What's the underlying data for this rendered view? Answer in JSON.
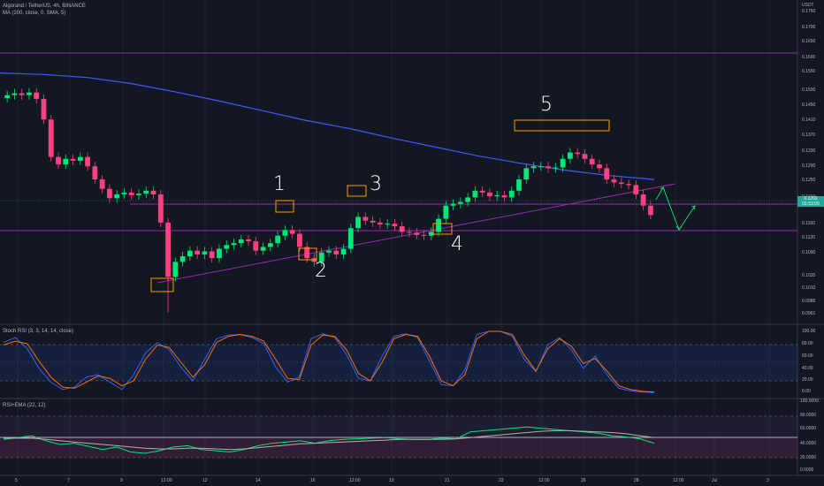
{
  "header": {
    "symbol": "Algorand / TetherUS, 4h, BINANCE",
    "indicator": "MA (200, close, 0, SMA, 5)"
  },
  "quote_currency": "USDT",
  "price_axis": {
    "ticks": [
      "0.1750",
      "0.1700",
      "0.1650",
      "0.1600",
      "0.1550",
      "0.1500",
      "0.1450",
      "0.1410",
      "0.1370",
      "0.1330",
      "0.1290",
      "0.1250",
      "0.1210",
      "0.1150",
      "0.1120",
      "0.1090",
      "0.1035",
      "0.1010",
      "0.0985",
      "0.0961"
    ],
    "last_price": "0.1202",
    "countdown": "01:53:09",
    "last_price_color": "#26a69a",
    "level_label": "0.1202"
  },
  "time_axis": {
    "ticks": [
      "5",
      "7",
      "9",
      "12:00",
      "12",
      "14",
      "16",
      "12:00",
      "19",
      "21",
      "23",
      "12:00",
      "26",
      "28",
      "12:00",
      "Jul",
      "3"
    ]
  },
  "stoch_rsi": {
    "title": "Stoch RSI (3, 3, 14, 14, close)",
    "ticks": [
      "100.00",
      "80.00",
      "60.00",
      "40.00",
      "20.00",
      "0.00"
    ],
    "k_color": "#2962ff",
    "d_color": "#ff6d00"
  },
  "rsi": {
    "title": "RSI+EMA (22, 12)",
    "ticks": [
      "100.0000",
      "80.0000",
      "60.0000",
      "40.0000",
      "20.0000",
      "0.0000"
    ],
    "rsi_color": "#00e676",
    "ema_color": "#b0b0b0"
  },
  "annotations": {
    "wave_labels": [
      "1",
      "2",
      "3",
      "4",
      "5"
    ]
  },
  "colors": {
    "background": "#131722",
    "up": "#00e676",
    "down": "#ff4081",
    "ma": "#3d5afe",
    "level_line": "#9c27b0",
    "box": "#ff9800",
    "arrow": "#00e676"
  },
  "chart_data": {
    "type": "candlestick",
    "title": "Algorand / TetherUS, 4h, BINANCE",
    "ylabel": "USDT",
    "ylim": [
      0.094,
      0.177
    ],
    "close_series": [
      0.1535,
      0.154,
      0.1535,
      0.1542,
      0.1525,
      0.147,
      0.137,
      0.135,
      0.1365,
      0.136,
      0.137,
      0.1345,
      0.131,
      0.1285,
      0.126,
      0.127,
      0.1275,
      0.1268,
      0.1272,
      0.128,
      0.127,
      0.1195,
      0.105,
      0.109,
      0.1105,
      0.112,
      0.111,
      0.1118,
      0.11,
      0.1125,
      0.1135,
      0.114,
      0.115,
      0.1145,
      0.112,
      0.113,
      0.114,
      0.116,
      0.1175,
      0.1165,
      0.113,
      0.11,
      0.109,
      0.1115,
      0.112,
      0.111,
      0.1125,
      0.118,
      0.121,
      0.12,
      0.1195,
      0.119,
      0.1192,
      0.1185,
      0.117,
      0.1168,
      0.1162,
      0.116,
      0.117,
      0.1205,
      0.124,
      0.1245,
      0.125,
      0.1262,
      0.128,
      0.1275,
      0.1265,
      0.1268,
      0.1262,
      0.128,
      0.131,
      0.134,
      0.1345,
      0.1345,
      0.134,
      0.1342,
      0.1365,
      0.1382,
      0.1378,
      0.1365,
      0.135,
      0.134,
      0.131,
      0.1302,
      0.1298,
      0.1295,
      0.127,
      0.124,
      0.1215
    ],
    "moving_average": [
      0.1594,
      0.159,
      0.1582,
      0.1566,
      0.1544,
      0.152,
      0.1494,
      0.1468,
      0.1446,
      0.142,
      0.1396,
      0.1372,
      0.1352,
      0.1334,
      0.132,
      0.131
    ],
    "horizontal_levels": [
      0.16,
      0.1202,
      0.115
    ],
    "stoch_rsi_k": [
      82,
      90,
      72,
      40,
      18,
      6,
      10,
      26,
      30,
      18,
      6,
      30,
      65,
      82,
      70,
      42,
      20,
      55,
      88,
      94,
      95,
      90,
      80,
      42,
      18,
      26,
      88,
      96,
      90,
      62,
      24,
      20,
      60,
      92,
      96,
      90,
      52,
      14,
      12,
      38,
      95,
      100,
      100,
      92,
      55,
      35,
      78,
      90,
      70,
      40,
      60,
      30,
      8,
      4,
      2,
      1
    ],
    "stoch_rsi_d": [
      78,
      84,
      80,
      52,
      26,
      10,
      8,
      18,
      28,
      24,
      12,
      20,
      55,
      78,
      74,
      50,
      26,
      46,
      82,
      92,
      95,
      92,
      84,
      55,
      24,
      22,
      78,
      94,
      92,
      70,
      32,
      20,
      50,
      88,
      95,
      92,
      60,
      20,
      12,
      30,
      88,
      100,
      100,
      95,
      62,
      36,
      72,
      88,
      76,
      48,
      56,
      36,
      12,
      6,
      3,
      2
    ],
    "rsi": [
      46,
      49,
      52,
      44,
      38,
      40,
      35,
      30,
      34,
      26,
      24,
      28,
      34,
      36,
      30,
      28,
      26,
      30,
      36,
      40,
      42,
      44,
      40,
      44,
      46,
      47,
      48,
      49,
      47,
      46,
      46,
      48,
      47,
      58,
      60,
      62,
      64,
      66,
      64,
      62,
      60,
      58,
      56,
      52,
      50,
      47,
      40
    ],
    "rsi_ema": [
      48,
      48,
      48,
      46,
      44,
      42,
      40,
      38,
      36,
      34,
      32,
      31,
      31,
      32,
      32,
      31,
      30,
      31,
      33,
      35,
      37,
      39,
      40,
      41,
      42,
      43,
      44,
      45,
      46,
      46,
      46,
      46,
      47,
      49,
      51,
      53,
      55,
      57,
      59,
      60,
      60,
      59,
      58,
      57,
      55,
      52,
      49
    ]
  }
}
